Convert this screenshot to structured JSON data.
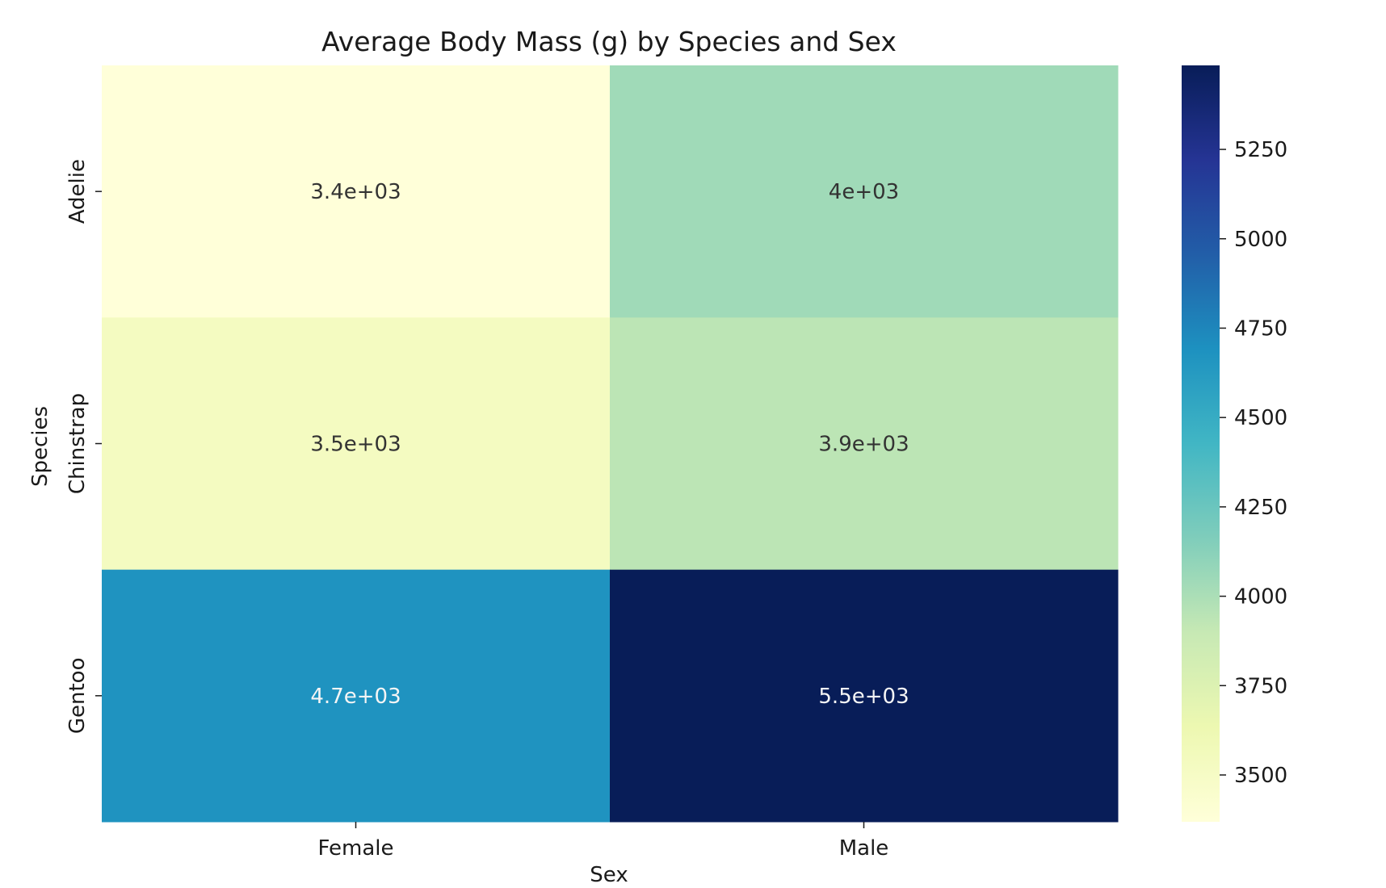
{
  "chart_data": {
    "type": "heatmap",
    "title": "Average Body Mass (g) by Species and Sex",
    "xlabel": "Sex",
    "ylabel": "Species",
    "x_categories": [
      "Female",
      "Male"
    ],
    "y_categories": [
      "Adelie",
      "Chinstrap",
      "Gentoo"
    ],
    "values": [
      [
        3369,
        4043
      ],
      [
        3527,
        3939
      ],
      [
        4680,
        5485
      ]
    ],
    "cell_labels": [
      [
        "3.4e+03",
        "4e+03"
      ],
      [
        "3.5e+03",
        "3.9e+03"
      ],
      [
        "4.7e+03",
        "5.5e+03"
      ]
    ],
    "colormap": "YlGnBu",
    "colorbar": {
      "range": [
        3369,
        5485
      ],
      "ticks": [
        3500,
        3750,
        4000,
        4250,
        4500,
        4750,
        5000,
        5250
      ],
      "tick_labels": [
        "3500",
        "3750",
        "4000",
        "4250",
        "4500",
        "4750",
        "5000",
        "5250"
      ]
    }
  }
}
